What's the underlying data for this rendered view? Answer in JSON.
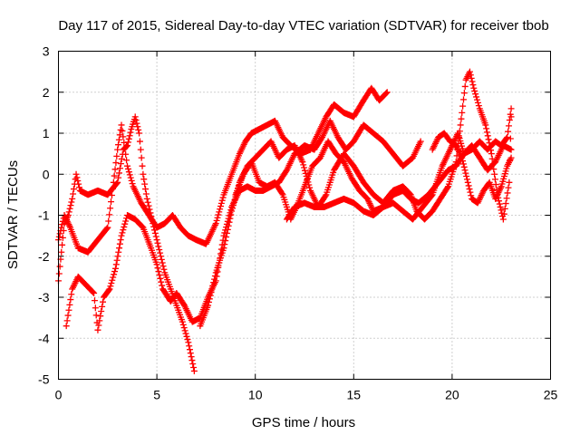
{
  "chart_data": {
    "type": "scatter",
    "title": "Day 117 of 2015, Sidereal Day-to-day VTEC variation (SDTVAR) for receiver tbob",
    "xlabel": "GPS time / hours",
    "ylabel": "SDTVAR / TECUs",
    "xlim": [
      0,
      25
    ],
    "ylim": [
      -5,
      3
    ],
    "xticks": [
      "0",
      "5",
      "10",
      "15",
      "20",
      "25"
    ],
    "yticks": [
      "-5",
      "-4",
      "-3",
      "-2",
      "-1",
      "0",
      "1",
      "2",
      "3"
    ],
    "grid": true,
    "marker": "plus",
    "color": "#ff0000",
    "series": [
      {
        "points": [
          [
            0,
            -2.6
          ],
          [
            0.3,
            -1.2
          ],
          [
            0.5,
            -1.0
          ],
          [
            0.7,
            -0.6
          ],
          [
            0.9,
            0.0
          ],
          [
            1.1,
            -0.4
          ],
          [
            1.5,
            -0.5
          ],
          [
            2.0,
            -0.4
          ],
          [
            2.5,
            -0.5
          ],
          [
            3.0,
            -0.2
          ],
          [
            3.3,
            0.6
          ],
          [
            3.5,
            0.7
          ],
          [
            3.7,
            1.1
          ],
          [
            3.9,
            1.4
          ],
          [
            4.1,
            1.0
          ],
          [
            4.3,
            0.0
          ],
          [
            4.5,
            -0.6
          ],
          [
            4.8,
            -1.2
          ],
          [
            5.0,
            -1.6
          ],
          [
            5.2,
            -2.0
          ],
          [
            5.4,
            -2.4
          ],
          [
            5.7,
            -2.8
          ],
          [
            6.0,
            -3.2
          ],
          [
            6.3,
            -3.6
          ],
          [
            6.6,
            -4.1
          ],
          [
            6.9,
            -4.8
          ]
        ]
      },
      {
        "points": [
          [
            0,
            -1.6
          ],
          [
            0.3,
            -1.0
          ],
          [
            0.6,
            -1.3
          ],
          [
            1.0,
            -1.8
          ],
          [
            1.5,
            -1.9
          ],
          [
            2.0,
            -1.6
          ],
          [
            2.5,
            -1.3
          ],
          [
            2.8,
            -0.2
          ],
          [
            3.0,
            0.6
          ],
          [
            3.2,
            1.2
          ],
          [
            3.5,
            0.2
          ],
          [
            3.8,
            -0.3
          ],
          [
            4.2,
            -0.7
          ],
          [
            4.6,
            -1.0
          ],
          [
            5.0,
            -1.3
          ],
          [
            5.4,
            -1.2
          ],
          [
            5.8,
            -1.0
          ],
          [
            6.2,
            -1.3
          ],
          [
            6.6,
            -1.5
          ],
          [
            7.0,
            -1.6
          ],
          [
            7.5,
            -1.7
          ],
          [
            8.0,
            -1.2
          ],
          [
            8.4,
            -0.5
          ],
          [
            8.8,
            0.0
          ],
          [
            9.2,
            0.5
          ],
          [
            9.5,
            0.8
          ],
          [
            9.8,
            1.0
          ],
          [
            10.2,
            1.1
          ],
          [
            10.6,
            1.2
          ],
          [
            11.0,
            1.3
          ],
          [
            11.4,
            0.9
          ],
          [
            11.8,
            0.7
          ],
          [
            12.3,
            0.5
          ],
          [
            12.8,
            0.6
          ],
          [
            13.2,
            1.0
          ],
          [
            13.6,
            1.4
          ],
          [
            14.0,
            1.7
          ],
          [
            14.5,
            1.5
          ],
          [
            15.0,
            1.4
          ],
          [
            15.5,
            1.8
          ],
          [
            15.9,
            2.1
          ],
          [
            16.3,
            1.8
          ],
          [
            16.7,
            2.0
          ]
        ]
      },
      {
        "points": [
          [
            0.4,
            -3.7
          ],
          [
            0.7,
            -2.8
          ],
          [
            1.0,
            -2.5
          ],
          [
            1.4,
            -2.7
          ],
          [
            1.8,
            -2.9
          ],
          [
            2.0,
            -3.8
          ],
          [
            2.3,
            -3.0
          ],
          [
            2.6,
            -2.8
          ],
          [
            2.9,
            -2.3
          ],
          [
            3.2,
            -1.5
          ],
          [
            3.5,
            -1.0
          ],
          [
            3.9,
            -1.1
          ],
          [
            4.3,
            -1.3
          ],
          [
            4.7,
            -1.8
          ],
          [
            5.0,
            -2.2
          ],
          [
            5.3,
            -2.8
          ],
          [
            5.7,
            -3.1
          ],
          [
            6.0,
            -2.9
          ],
          [
            6.4,
            -3.2
          ],
          [
            6.8,
            -3.6
          ],
          [
            7.2,
            -3.5
          ],
          [
            7.6,
            -3.0
          ],
          [
            8.0,
            -2.6
          ],
          [
            8.4,
            -1.5
          ],
          [
            8.8,
            -0.8
          ],
          [
            9.2,
            -0.4
          ],
          [
            9.6,
            -0.3
          ],
          [
            10.0,
            -0.4
          ],
          [
            10.4,
            -0.4
          ],
          [
            10.8,
            -0.3
          ],
          [
            11.2,
            -0.2
          ],
          [
            11.6,
            0.1
          ],
          [
            12.0,
            0.5
          ],
          [
            12.5,
            0.7
          ],
          [
            13.0,
            0.6
          ],
          [
            13.4,
            0.9
          ],
          [
            13.8,
            1.3
          ],
          [
            14.2,
            0.9
          ],
          [
            14.6,
            0.6
          ],
          [
            15.0,
            0.8
          ],
          [
            15.5,
            1.2
          ],
          [
            16.0,
            1.0
          ],
          [
            16.5,
            0.8
          ],
          [
            17.0,
            0.5
          ],
          [
            17.5,
            0.2
          ],
          [
            18.0,
            0.4
          ],
          [
            18.4,
            0.8
          ]
        ]
      },
      {
        "points": [
          [
            7.2,
            -3.7
          ],
          [
            7.6,
            -3.2
          ],
          [
            8.0,
            -2.4
          ],
          [
            8.4,
            -1.8
          ],
          [
            8.8,
            -0.9
          ],
          [
            9.2,
            -0.2
          ],
          [
            9.6,
            0.2
          ],
          [
            10.0,
            0.4
          ],
          [
            10.4,
            0.6
          ],
          [
            10.8,
            0.8
          ],
          [
            11.2,
            0.4
          ],
          [
            11.6,
            0.6
          ],
          [
            12.0,
            0.7
          ],
          [
            12.4,
            0.3
          ],
          [
            12.8,
            -0.4
          ],
          [
            13.2,
            -0.8
          ],
          [
            13.6,
            -0.5
          ],
          [
            14.0,
            0.1
          ],
          [
            14.5,
            0.5
          ],
          [
            15.0,
            0.2
          ],
          [
            15.5,
            -0.2
          ],
          [
            16.0,
            -0.5
          ],
          [
            16.5,
            -0.7
          ],
          [
            17.0,
            -0.4
          ],
          [
            17.5,
            -0.3
          ],
          [
            17.9,
            -0.5
          ],
          [
            18.2,
            -0.9
          ],
          [
            18.6,
            -1.1
          ],
          [
            19.0,
            -0.9
          ],
          [
            19.4,
            -0.6
          ],
          [
            19.8,
            -0.3
          ],
          [
            20.2,
            0.3
          ],
          [
            20.5,
            1.5
          ],
          [
            20.7,
            2.3
          ],
          [
            20.9,
            2.5
          ],
          [
            21.1,
            2.1
          ],
          [
            21.4,
            1.6
          ],
          [
            21.7,
            1.2
          ],
          [
            22.0,
            0.5
          ],
          [
            22.3,
            -0.5
          ],
          [
            22.6,
            -1.1
          ],
          [
            22.9,
            -0.2
          ],
          [
            23.0,
            1.4
          ]
        ]
      },
      {
        "points": [
          [
            9.0,
            -0.5
          ],
          [
            9.4,
            0.0
          ],
          [
            9.8,
            0.3
          ],
          [
            10.2,
            -0.2
          ],
          [
            10.6,
            -0.3
          ],
          [
            11.0,
            -0.2
          ],
          [
            11.4,
            -0.5
          ],
          [
            11.8,
            -1.1
          ],
          [
            12.1,
            -0.8
          ],
          [
            12.5,
            -0.3
          ],
          [
            12.9,
            0.2
          ],
          [
            13.3,
            0.4
          ],
          [
            13.7,
            0.8
          ],
          [
            14.1,
            0.5
          ],
          [
            14.5,
            0.3
          ],
          [
            14.9,
            -0.1
          ],
          [
            15.3,
            -0.4
          ],
          [
            15.7,
            -0.6
          ],
          [
            16.0,
            -0.9
          ],
          [
            16.5,
            -0.8
          ],
          [
            17.0,
            -0.5
          ],
          [
            17.5,
            -0.4
          ],
          [
            17.9,
            -0.6
          ],
          [
            18.3,
            -0.7
          ],
          [
            18.8,
            -0.5
          ],
          [
            19.3,
            -0.2
          ],
          [
            19.8,
            0.1
          ],
          [
            20.2,
            0.2
          ],
          [
            20.6,
            0.5
          ],
          [
            21.0,
            0.7
          ],
          [
            21.4,
            0.4
          ],
          [
            21.8,
            0.1
          ],
          [
            22.2,
            0.3
          ],
          [
            22.6,
            0.7
          ],
          [
            23.0,
            0.6
          ]
        ]
      },
      {
        "points": [
          [
            11.6,
            -1.1
          ],
          [
            12.0,
            -0.8
          ],
          [
            12.5,
            -0.7
          ],
          [
            13.0,
            -0.8
          ],
          [
            13.5,
            -0.8
          ],
          [
            14.0,
            -0.7
          ],
          [
            14.5,
            -0.6
          ],
          [
            15.0,
            -0.7
          ],
          [
            15.5,
            -0.9
          ],
          [
            16.0,
            -1.0
          ],
          [
            16.5,
            -0.8
          ],
          [
            17.0,
            -0.7
          ],
          [
            17.5,
            -0.9
          ],
          [
            18.0,
            -1.1
          ],
          [
            18.5,
            -0.8
          ],
          [
            19.0,
            -0.5
          ],
          [
            19.5,
            0.2
          ],
          [
            20.0,
            0.7
          ],
          [
            20.3,
            1.0
          ],
          [
            20.6,
            0.5
          ],
          [
            21.0,
            0.6
          ],
          [
            21.4,
            0.8
          ],
          [
            21.8,
            0.6
          ],
          [
            22.2,
            0.8
          ],
          [
            22.5,
            0.7
          ],
          [
            22.8,
            0.9
          ],
          [
            23.0,
            1.6
          ]
        ]
      },
      {
        "points": [
          [
            19.0,
            0.6
          ],
          [
            19.3,
            0.9
          ],
          [
            19.6,
            1.0
          ],
          [
            19.9,
            0.8
          ],
          [
            20.2,
            0.7
          ],
          [
            20.5,
            0.4
          ],
          [
            20.8,
            -0.2
          ],
          [
            21.0,
            -0.6
          ],
          [
            21.3,
            -0.7
          ],
          [
            21.6,
            -0.4
          ],
          [
            21.9,
            -0.2
          ],
          [
            22.2,
            -0.6
          ],
          [
            22.5,
            -0.3
          ],
          [
            22.8,
            0.2
          ],
          [
            23.0,
            0.4
          ]
        ]
      }
    ]
  }
}
